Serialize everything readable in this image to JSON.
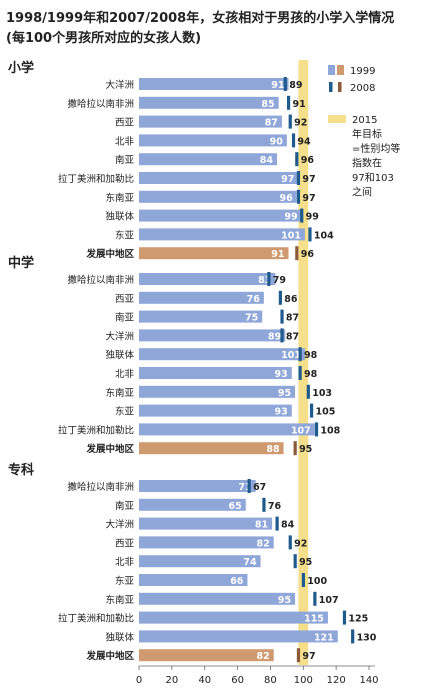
{
  "colors": {
    "bar_1999": "#8fa6d9",
    "bar_1999_developing": "#cf9a70",
    "marker_2008": "#1f5a8c",
    "marker_2008_developing": "#8a5a3a",
    "target_band": "#f6df8a",
    "white_text": "#ffffff",
    "dark_text": "#222222"
  },
  "chart_data": {
    "type": "bar",
    "orientation": "horizontal",
    "title": "1998/1999年和2007/2008年，女孩相对于男孩的小学入学情况",
    "subtitle": "(每100个男孩所对应的女孩人数)",
    "xlim": [
      0,
      140
    ],
    "xticks": [
      "0",
      "20",
      "40",
      "60",
      "80",
      "100",
      "120",
      "140"
    ],
    "legend": {
      "entries": [
        "1999",
        "2008"
      ],
      "target_text": [
        "2015",
        "年目标",
        "=性别均等",
        "指数在",
        "97和103",
        "之间"
      ]
    },
    "target_range": [
      97,
      103
    ],
    "groups": [
      {
        "name": "小学",
        "rows": [
          {
            "label": "大洋洲",
            "v1999": 91,
            "v2008": 89,
            "developing": false
          },
          {
            "label": "撒哈拉以南非洲",
            "v1999": 85,
            "v2008": 91,
            "developing": false
          },
          {
            "label": "西亚",
            "v1999": 87,
            "v2008": 92,
            "developing": false
          },
          {
            "label": "北非",
            "v1999": 90,
            "v2008": 94,
            "developing": false
          },
          {
            "label": "南亚",
            "v1999": 84,
            "v2008": 96,
            "developing": false
          },
          {
            "label": "拉丁美洲和加勒比",
            "v1999": 97,
            "v2008": 97,
            "developing": false
          },
          {
            "label": "东南亚",
            "v1999": 96,
            "v2008": 97,
            "developing": false
          },
          {
            "label": "独联体",
            "v1999": 99,
            "v2008": 99,
            "developing": false
          },
          {
            "label": "东亚",
            "v1999": 101,
            "v2008": 104,
            "developing": false
          },
          {
            "label": "发展中地区",
            "v1999": 91,
            "v2008": 96,
            "developing": true
          }
        ]
      },
      {
        "name": "中学",
        "rows": [
          {
            "label": "撒哈拉以南非洲",
            "v1999": 83,
            "v2008": 79,
            "developing": false
          },
          {
            "label": "西亚",
            "v1999": 76,
            "v2008": 86,
            "developing": false
          },
          {
            "label": "南亚",
            "v1999": 75,
            "v2008": 87,
            "developing": false
          },
          {
            "label": "大洋洲",
            "v1999": 89,
            "v2008": 87,
            "developing": false
          },
          {
            "label": "独联体",
            "v1999": 101,
            "v2008": 98,
            "developing": false
          },
          {
            "label": "北非",
            "v1999": 93,
            "v2008": 98,
            "developing": false
          },
          {
            "label": "东南亚",
            "v1999": 95,
            "v2008": 103,
            "developing": false
          },
          {
            "label": "东亚",
            "v1999": 93,
            "v2008": 105,
            "developing": false
          },
          {
            "label": "拉丁美洲和加勒比",
            "v1999": 107,
            "v2008": 108,
            "developing": false
          },
          {
            "label": "发展中地区",
            "v1999": 88,
            "v2008": 95,
            "developing": true
          }
        ]
      },
      {
        "name": "专科",
        "rows": [
          {
            "label": "撒哈拉以南非洲",
            "v1999": 71,
            "v2008": 67,
            "developing": false
          },
          {
            "label": "南亚",
            "v1999": 65,
            "v2008": 76,
            "developing": false
          },
          {
            "label": "大洋洲",
            "v1999": 81,
            "v2008": 84,
            "developing": false
          },
          {
            "label": "西亚",
            "v1999": 82,
            "v2008": 92,
            "developing": false
          },
          {
            "label": "北非",
            "v1999": 74,
            "v2008": 95,
            "developing": false
          },
          {
            "label": "东亚",
            "v1999": 66,
            "v2008": 100,
            "developing": false
          },
          {
            "label": "东南亚",
            "v1999": 95,
            "v2008": 107,
            "developing": false
          },
          {
            "label": "拉丁美洲和加勒比",
            "v1999": 115,
            "v2008": 125,
            "developing": false
          },
          {
            "label": "独联体",
            "v1999": 121,
            "v2008": 130,
            "developing": false
          },
          {
            "label": "发展中地区",
            "v1999": 82,
            "v2008": 97,
            "developing": true
          }
        ]
      }
    ]
  }
}
